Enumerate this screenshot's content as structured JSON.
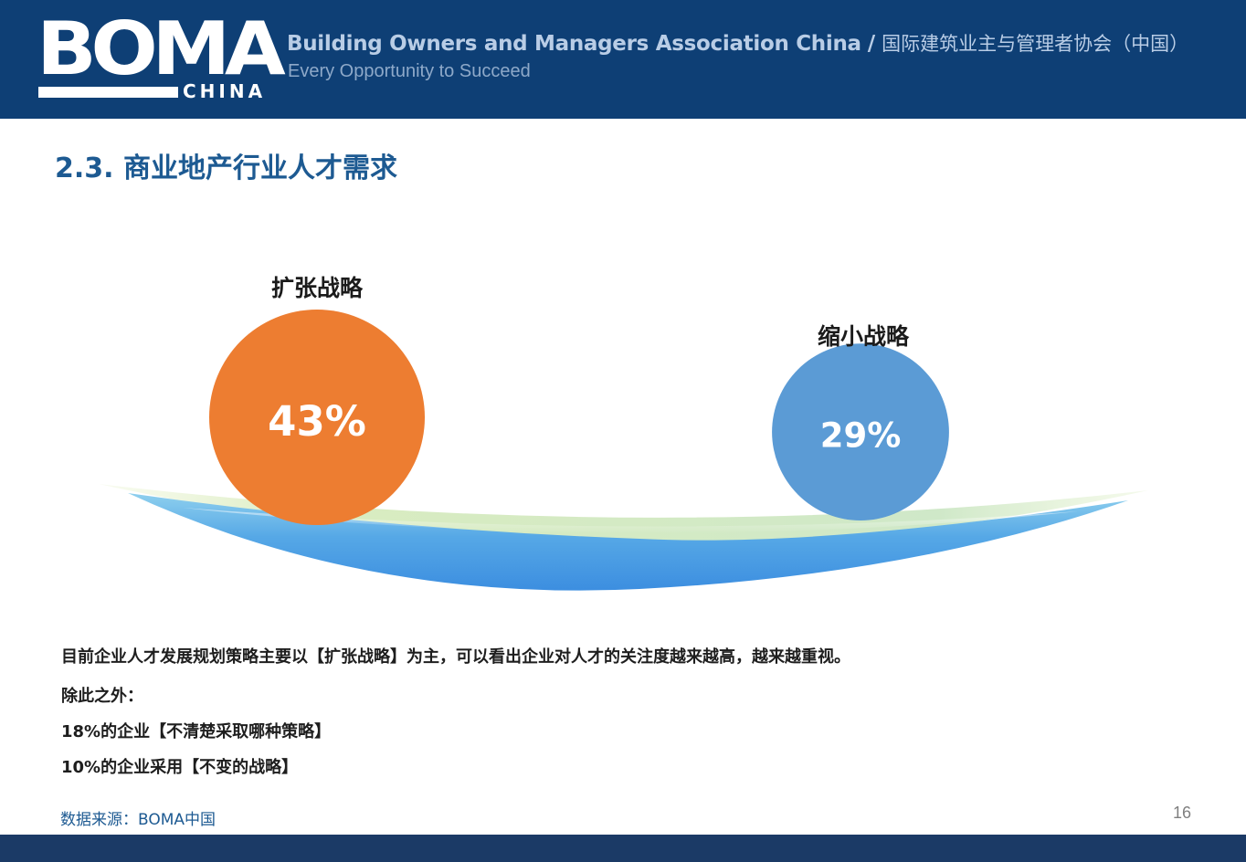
{
  "header": {
    "logo_word": "BOMA",
    "logo_sub": "CHINA",
    "org_name_en": "Building Owners and Managers Association China",
    "org_separator": "/",
    "org_name_cn": "国际建筑业主与管理者协会（中国）",
    "tagline": "Every Opportunity to Succeed"
  },
  "title": "2.3. 商业地产行业人才需求",
  "chart_data": {
    "type": "bubble",
    "series": [
      {
        "name": "扩张战略",
        "value": 43,
        "value_label": "43%",
        "color": "#ed7d31"
      },
      {
        "name": "缩小战略",
        "value": 29,
        "value_label": "29%",
        "color": "#5b9bd5"
      }
    ]
  },
  "body": {
    "line1": "目前企业人才发展规划策略主要以【扩张战略】为主，可以看出企业对人才的关注度越来越高，越来越重视。",
    "line2": "除此之外：",
    "line3": "18%的企业【不清楚采取哪种策略】",
    "line4": "10%的企业采用【不变的战略】"
  },
  "source": "数据来源：BOMA中国",
  "page_number": "16",
  "colors": {
    "header_bg": "#0e3f75",
    "title": "#1d5a92",
    "footer_bg": "#1b3a66"
  }
}
